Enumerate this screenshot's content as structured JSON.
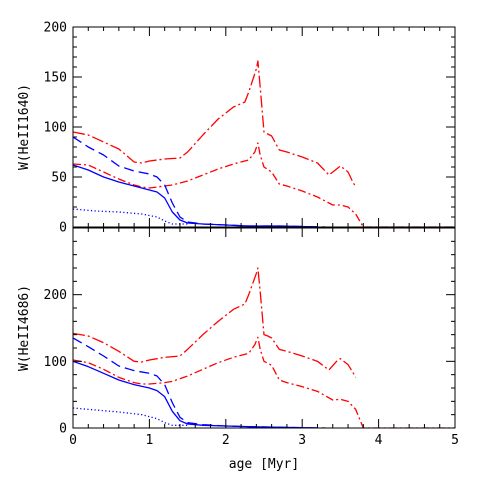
{
  "chart_data": [
    {
      "id": "heii1640",
      "type": "line",
      "ylabel": "W(HeII1640)",
      "xlabel": "",
      "xlim": [
        0,
        5
      ],
      "ylim": [
        0,
        200
      ],
      "xticks": [
        0,
        1,
        2,
        3,
        4,
        5
      ],
      "yticks": [
        0,
        50,
        100,
        150,
        200
      ],
      "show_x_tick_labels": false,
      "series": [
        {
          "color": "#ff0000",
          "dash": "dashdot-long",
          "points": [
            [
              0,
              95
            ],
            [
              0.2,
              92
            ],
            [
              0.4,
              85
            ],
            [
              0.6,
              78
            ],
            [
              0.8,
              65
            ],
            [
              0.9,
              64
            ],
            [
              1.0,
              66
            ],
            [
              1.2,
              68
            ],
            [
              1.4,
              69
            ],
            [
              1.5,
              75
            ],
            [
              1.7,
              92
            ],
            [
              1.9,
              108
            ],
            [
              2.1,
              120
            ],
            [
              2.25,
              125
            ],
            [
              2.3,
              135
            ],
            [
              2.4,
              158
            ],
            [
              2.42,
              166
            ],
            [
              2.45,
              140
            ],
            [
              2.5,
              95
            ],
            [
              2.55,
              93
            ],
            [
              2.6,
              91
            ],
            [
              2.7,
              77
            ],
            [
              2.8,
              75
            ],
            [
              3.0,
              70
            ],
            [
              3.2,
              64
            ],
            [
              3.35,
              52
            ],
            [
              3.45,
              58
            ],
            [
              3.5,
              61
            ],
            [
              3.6,
              55
            ],
            [
              3.65,
              47
            ],
            [
              3.7,
              40
            ]
          ]
        },
        {
          "color": "#ff0000",
          "dash": "dashdot",
          "points": [
            [
              0,
              63
            ],
            [
              0.2,
              62
            ],
            [
              0.4,
              55
            ],
            [
              0.6,
              48
            ],
            [
              0.8,
              42
            ],
            [
              0.9,
              40
            ],
            [
              1.0,
              39
            ],
            [
              1.2,
              41
            ],
            [
              1.3,
              42
            ],
            [
              1.5,
              46
            ],
            [
              1.7,
              52
            ],
            [
              1.9,
              58
            ],
            [
              2.1,
              63
            ],
            [
              2.3,
              67
            ],
            [
              2.38,
              75
            ],
            [
              2.42,
              84
            ],
            [
              2.45,
              72
            ],
            [
              2.5,
              60
            ],
            [
              2.6,
              55
            ],
            [
              2.7,
              43
            ],
            [
              2.8,
              41
            ],
            [
              3.0,
              36
            ],
            [
              3.2,
              30
            ],
            [
              3.4,
              22
            ],
            [
              3.5,
              22
            ],
            [
              3.6,
              20
            ],
            [
              3.7,
              13
            ],
            [
              3.8,
              0
            ],
            [
              5.0,
              0
            ]
          ]
        },
        {
          "color": "#0000ff",
          "dash": "longdash",
          "points": [
            [
              0,
              90
            ],
            [
              0.2,
              80
            ],
            [
              0.4,
              72
            ],
            [
              0.6,
              61
            ],
            [
              0.8,
              56
            ],
            [
              1.0,
              53
            ],
            [
              1.1,
              50
            ],
            [
              1.2,
              42
            ],
            [
              1.3,
              24
            ],
            [
              1.4,
              10
            ],
            [
              1.5,
              5
            ],
            [
              1.7,
              3
            ],
            [
              2.0,
              2
            ],
            [
              2.3,
              1
            ],
            [
              2.7,
              1
            ],
            [
              3.0,
              0.5
            ],
            [
              3.3,
              0
            ]
          ]
        },
        {
          "color": "#0000ff",
          "dash": "solid",
          "points": [
            [
              0,
              62
            ],
            [
              0.2,
              57
            ],
            [
              0.4,
              50
            ],
            [
              0.6,
              45
            ],
            [
              0.8,
              41
            ],
            [
              1.0,
              37
            ],
            [
              1.1,
              35
            ],
            [
              1.2,
              29
            ],
            [
              1.3,
              15
            ],
            [
              1.4,
              7
            ],
            [
              1.5,
              4
            ],
            [
              1.7,
              3
            ],
            [
              2.0,
              2
            ],
            [
              2.3,
              1
            ],
            [
              2.7,
              1
            ],
            [
              3.0,
              0.5
            ],
            [
              3.2,
              0
            ]
          ]
        },
        {
          "color": "#0000ff",
          "dash": "dotted",
          "points": [
            [
              0,
              18
            ],
            [
              0.3,
              16
            ],
            [
              0.6,
              15
            ],
            [
              0.9,
              13
            ],
            [
              1.1,
              10
            ],
            [
              1.2,
              6
            ],
            [
              1.3,
              3
            ],
            [
              1.5,
              3
            ]
          ]
        }
      ]
    },
    {
      "id": "heii4686",
      "type": "line",
      "ylabel": "W(HeII4686)",
      "xlabel": "age [Myr]",
      "xlim": [
        0,
        5
      ],
      "ylim": [
        0,
        300
      ],
      "xticks": [
        0,
        1,
        2,
        3,
        4,
        5
      ],
      "yticks": [
        0,
        100,
        200
      ],
      "show_x_tick_labels": true,
      "series": [
        {
          "color": "#ff0000",
          "dash": "dashdot-long",
          "points": [
            [
              0,
              142
            ],
            [
              0.2,
              138
            ],
            [
              0.4,
              128
            ],
            [
              0.6,
              115
            ],
            [
              0.8,
              100
            ],
            [
              0.9,
              99
            ],
            [
              1.0,
              102
            ],
            [
              1.2,
              106
            ],
            [
              1.4,
              108
            ],
            [
              1.5,
              118
            ],
            [
              1.7,
              140
            ],
            [
              1.9,
              160
            ],
            [
              2.1,
              178
            ],
            [
              2.25,
              186
            ],
            [
              2.3,
              200
            ],
            [
              2.4,
              232
            ],
            [
              2.42,
              240
            ],
            [
              2.45,
              205
            ],
            [
              2.5,
              140
            ],
            [
              2.55,
              138
            ],
            [
              2.6,
              135
            ],
            [
              2.7,
              118
            ],
            [
              2.8,
              115
            ],
            [
              3.0,
              108
            ],
            [
              3.2,
              100
            ],
            [
              3.35,
              87
            ],
            [
              3.45,
              100
            ],
            [
              3.5,
              104
            ],
            [
              3.6,
              95
            ],
            [
              3.65,
              86
            ],
            [
              3.7,
              76
            ]
          ]
        },
        {
          "color": "#ff0000",
          "dash": "dashdot",
          "points": [
            [
              0,
              102
            ],
            [
              0.2,
              98
            ],
            [
              0.4,
              88
            ],
            [
              0.6,
              76
            ],
            [
              0.8,
              68
            ],
            [
              0.9,
              66
            ],
            [
              1.0,
              66
            ],
            [
              1.2,
              68
            ],
            [
              1.3,
              70
            ],
            [
              1.5,
              78
            ],
            [
              1.7,
              88
            ],
            [
              1.9,
              98
            ],
            [
              2.1,
              106
            ],
            [
              2.3,
              112
            ],
            [
              2.38,
              125
            ],
            [
              2.42,
              136
            ],
            [
              2.45,
              118
            ],
            [
              2.5,
              100
            ],
            [
              2.6,
              94
            ],
            [
              2.7,
              72
            ],
            [
              2.8,
              68
            ],
            [
              3.0,
              62
            ],
            [
              3.2,
              55
            ],
            [
              3.4,
              42
            ],
            [
              3.5,
              43
            ],
            [
              3.6,
              40
            ],
            [
              3.7,
              28
            ],
            [
              3.8,
              0
            ],
            [
              5.0,
              0
            ]
          ]
        },
        {
          "color": "#0000ff",
          "dash": "longdash",
          "points": [
            [
              0,
              135
            ],
            [
              0.2,
              122
            ],
            [
              0.4,
              108
            ],
            [
              0.6,
              93
            ],
            [
              0.8,
              86
            ],
            [
              1.0,
              82
            ],
            [
              1.1,
              78
            ],
            [
              1.2,
              65
            ],
            [
              1.3,
              38
            ],
            [
              1.4,
              16
            ],
            [
              1.5,
              8
            ],
            [
              1.7,
              5
            ],
            [
              2.0,
              3
            ],
            [
              2.3,
              2
            ],
            [
              2.7,
              1
            ],
            [
              3.0,
              0.5
            ],
            [
              3.3,
              0
            ]
          ]
        },
        {
          "color": "#0000ff",
          "dash": "solid",
          "points": [
            [
              0,
              100
            ],
            [
              0.2,
              92
            ],
            [
              0.4,
              82
            ],
            [
              0.6,
              72
            ],
            [
              0.8,
              65
            ],
            [
              1.0,
              60
            ],
            [
              1.1,
              56
            ],
            [
              1.2,
              47
            ],
            [
              1.3,
              25
            ],
            [
              1.4,
              11
            ],
            [
              1.5,
              6
            ],
            [
              1.7,
              4
            ],
            [
              2.0,
              3
            ],
            [
              2.3,
              2
            ],
            [
              2.7,
              1
            ],
            [
              3.0,
              0.5
            ],
            [
              3.2,
              0
            ]
          ]
        },
        {
          "color": "#0000ff",
          "dash": "dotted",
          "points": [
            [
              0,
              30
            ],
            [
              0.3,
              27
            ],
            [
              0.6,
              24
            ],
            [
              0.9,
              20
            ],
            [
              1.1,
              14
            ],
            [
              1.2,
              8
            ],
            [
              1.3,
              4
            ],
            [
              1.5,
              4
            ]
          ]
        }
      ]
    }
  ]
}
